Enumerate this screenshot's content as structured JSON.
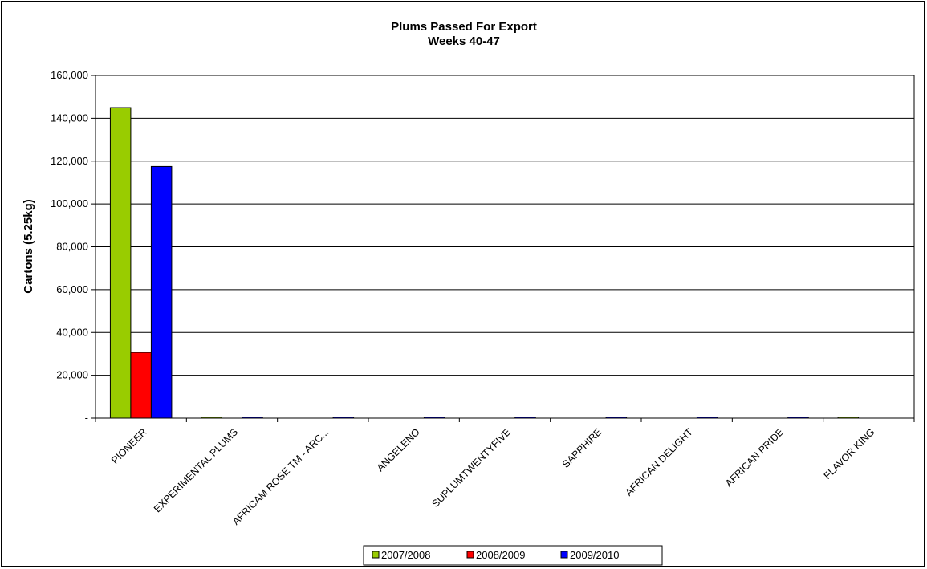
{
  "chart_data": {
    "type": "bar",
    "title": "Plums Passed For Export",
    "subtitle": "Weeks 40-47",
    "xlabel": "",
    "ylabel": "Cartons (5.25kg)",
    "ylim": [
      0,
      160000
    ],
    "yticks": [
      "-",
      "20,000",
      "40,000",
      "60,000",
      "80,000",
      "100,000",
      "120,000",
      "140,000",
      "160,000"
    ],
    "grid": true,
    "legend_position": "bottom",
    "categories": [
      "PIONEER",
      "EXPERIMENTAL PLUMS",
      "AFRICAM ROSE TM - ARC...",
      "ANGELENO",
      "SUPLUMTWENTYFIVE",
      "SAPPHIRE",
      "AFRICAN DELIGHT",
      "AFRICAN PRIDE",
      "FLAVOR KING"
    ],
    "series": [
      {
        "name": "2007/2008",
        "color": "#99cc00",
        "values": [
          145000,
          500,
          0,
          0,
          0,
          0,
          0,
          0,
          500
        ]
      },
      {
        "name": "2008/2009",
        "color": "#ff0000",
        "values": [
          30700,
          0,
          0,
          0,
          0,
          0,
          0,
          0,
          0
        ]
      },
      {
        "name": "2009/2010",
        "color": "#0000ff",
        "values": [
          117500,
          500,
          500,
          500,
          500,
          500,
          500,
          500,
          0
        ]
      }
    ]
  }
}
